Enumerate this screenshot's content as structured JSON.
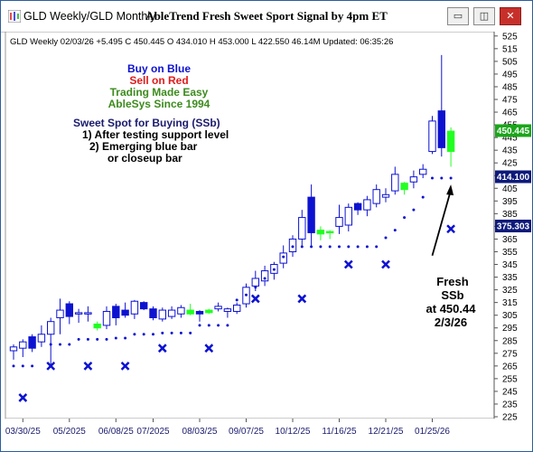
{
  "window": {
    "tab_title": "GLD Weekly/GLD Monthly",
    "title": "AbleTrend Fresh Sweet Sport Signal by 4pm ET",
    "controls": {
      "minimize": "▭",
      "restore": "◫",
      "close": "✕"
    }
  },
  "chart_header": "GLD  Weekly 02/03/26 +5.495 C 450.445 O 434.010 H 453.000 L 422.550 46.14M Updated: 06:35:26",
  "legend": {
    "buy": "Buy on Blue",
    "sell": "Sell on Red",
    "trading": "Trading Made Easy",
    "since": "AbleSys Since 1994",
    "sweet": "Sweet Spot for Buying (SSb)",
    "rule1": "1) After testing support level",
    "rule2": "2) Emerging blue bar",
    "rule3": "or closeup bar"
  },
  "annotation": [
    "Fresh",
    "SSb",
    "at 450.44",
    "2/3/26"
  ],
  "colors": {
    "blue": "#0d12d0",
    "red": "#e11b1b",
    "green": "#3d8b1e",
    "navy": "#1b1b6e",
    "bright_green": "#22ff22",
    "price_box_green": "#1aa61a",
    "price_box_navy": "#0d1a7a"
  },
  "chart_data": {
    "type": "candlestick",
    "symbol": "GLD",
    "interval": "Weekly",
    "ylim": [
      225,
      527
    ],
    "y_ticks": [
      525,
      515,
      505,
      495,
      485,
      475,
      465,
      455,
      445,
      435,
      425,
      415,
      405,
      395,
      385,
      375,
      365,
      355,
      345,
      335,
      325,
      315,
      305,
      295,
      285,
      275,
      265,
      255,
      245,
      235,
      225
    ],
    "x_ticks": [
      {
        "label": "03/30/25",
        "i": 1
      },
      {
        "label": "05/2025",
        "i": 6
      },
      {
        "label": "06/08/25",
        "i": 11
      },
      {
        "label": "07/2025",
        "i": 15
      },
      {
        "label": "08/03/25",
        "i": 20
      },
      {
        "label": "09/07/25",
        "i": 25
      },
      {
        "label": "10/12/25",
        "i": 30
      },
      {
        "label": "11/16/25",
        "i": 35
      },
      {
        "label": "12/21/25",
        "i": 40
      },
      {
        "label": "01/25/26",
        "i": 45
      }
    ],
    "price_labels": [
      {
        "value": "450.445",
        "color": "#1aa61a",
        "y": 450.445
      },
      {
        "value": "414.100",
        "color": "#0d1a7a",
        "y": 414.1
      },
      {
        "value": "375.303",
        "color": "#0d1a7a",
        "y": 375.303
      }
    ],
    "candles": [
      {
        "o": 277,
        "h": 282,
        "l": 270,
        "c": 280,
        "col": "white"
      },
      {
        "o": 279,
        "h": 286,
        "l": 272,
        "c": 284,
        "col": "white"
      },
      {
        "o": 279,
        "h": 290,
        "l": 276,
        "c": 288,
        "col": "blue"
      },
      {
        "o": 284,
        "h": 297,
        "l": 280,
        "c": 290,
        "col": "white"
      },
      {
        "o": 290,
        "h": 303,
        "l": 265,
        "c": 300,
        "col": "white"
      },
      {
        "o": 303,
        "h": 318,
        "l": 290,
        "c": 309,
        "col": "white"
      },
      {
        "o": 304,
        "h": 316,
        "l": 298,
        "c": 314,
        "col": "blue"
      },
      {
        "o": 307,
        "h": 310,
        "l": 299,
        "c": 306,
        "col": "white"
      },
      {
        "o": 307,
        "h": 312,
        "l": 300,
        "c": 306,
        "col": "white"
      },
      {
        "o": 298,
        "h": 300,
        "l": 293,
        "c": 295,
        "col": "green"
      },
      {
        "o": 297,
        "h": 312,
        "l": 294,
        "c": 308,
        "col": "white"
      },
      {
        "o": 303,
        "h": 314,
        "l": 297,
        "c": 312,
        "col": "blue"
      },
      {
        "o": 305,
        "h": 315,
        "l": 303,
        "c": 309,
        "col": "blue"
      },
      {
        "o": 306,
        "h": 317,
        "l": 302,
        "c": 316,
        "col": "white"
      },
      {
        "o": 315,
        "h": 316,
        "l": 309,
        "c": 310,
        "col": "blue"
      },
      {
        "o": 310,
        "h": 312,
        "l": 301,
        "c": 303,
        "col": "blue"
      },
      {
        "o": 302,
        "h": 311,
        "l": 300,
        "c": 309,
        "col": "white"
      },
      {
        "o": 304,
        "h": 312,
        "l": 302,
        "c": 309,
        "col": "white"
      },
      {
        "o": 306,
        "h": 313,
        "l": 303,
        "c": 311,
        "col": "white"
      },
      {
        "o": 309,
        "h": 314,
        "l": 305,
        "c": 306,
        "col": "green"
      },
      {
        "o": 308,
        "h": 309,
        "l": 300,
        "c": 306,
        "col": "blue"
      },
      {
        "o": 309,
        "h": 310,
        "l": 306,
        "c": 307,
        "col": "green"
      },
      {
        "o": 310,
        "h": 315,
        "l": 308,
        "c": 312,
        "col": "white"
      },
      {
        "o": 308,
        "h": 311,
        "l": 303,
        "c": 310,
        "col": "white"
      },
      {
        "o": 308,
        "h": 315,
        "l": 306,
        "c": 313,
        "col": "white"
      },
      {
        "o": 314,
        "h": 330,
        "l": 311,
        "c": 327,
        "col": "white"
      },
      {
        "o": 328,
        "h": 340,
        "l": 324,
        "c": 334,
        "col": "white"
      },
      {
        "o": 332,
        "h": 344,
        "l": 328,
        "c": 340,
        "col": "white"
      },
      {
        "o": 338,
        "h": 347,
        "l": 333,
        "c": 345,
        "col": "white"
      },
      {
        "o": 346,
        "h": 360,
        "l": 342,
        "c": 354,
        "col": "white"
      },
      {
        "o": 355,
        "h": 368,
        "l": 351,
        "c": 365,
        "col": "white"
      },
      {
        "o": 365,
        "h": 388,
        "l": 360,
        "c": 382,
        "col": "white"
      },
      {
        "o": 370,
        "h": 408,
        "l": 360,
        "c": 398,
        "col": "blue"
      },
      {
        "o": 372,
        "h": 375,
        "l": 364,
        "c": 369,
        "col": "green"
      },
      {
        "o": 370,
        "h": 372,
        "l": 365,
        "c": 371,
        "col": "green"
      },
      {
        "o": 382,
        "h": 392,
        "l": 369,
        "c": 375,
        "col": "white"
      },
      {
        "o": 376,
        "h": 393,
        "l": 371,
        "c": 390,
        "col": "white"
      },
      {
        "o": 388,
        "h": 394,
        "l": 384,
        "c": 393,
        "col": "blue"
      },
      {
        "o": 388,
        "h": 399,
        "l": 383,
        "c": 396,
        "col": "white"
      },
      {
        "o": 393,
        "h": 408,
        "l": 390,
        "c": 404,
        "col": "white"
      },
      {
        "o": 398,
        "h": 405,
        "l": 394,
        "c": 400,
        "col": "white"
      },
      {
        "o": 403,
        "h": 422,
        "l": 400,
        "c": 416,
        "col": "white"
      },
      {
        "o": 409,
        "h": 410,
        "l": 400,
        "c": 404,
        "col": "green"
      },
      {
        "o": 410,
        "h": 419,
        "l": 405,
        "c": 414,
        "col": "white"
      },
      {
        "o": 416,
        "h": 424,
        "l": 413,
        "c": 420,
        "col": "white"
      },
      {
        "o": 434,
        "h": 462,
        "l": 432,
        "c": 458,
        "col": "white"
      },
      {
        "o": 437,
        "h": 510,
        "l": 430,
        "c": 466,
        "col": "blue"
      },
      {
        "o": 434,
        "h": 453,
        "l": 422,
        "c": 450,
        "col": "green"
      }
    ],
    "dots": [
      [
        0,
        265
      ],
      [
        1,
        265
      ],
      [
        2,
        265
      ],
      [
        4,
        282
      ],
      [
        5,
        282
      ],
      [
        6,
        282
      ],
      [
        7,
        286
      ],
      [
        8,
        286
      ],
      [
        9,
        286
      ],
      [
        10,
        286
      ],
      [
        11,
        287
      ],
      [
        12,
        287
      ],
      [
        13,
        290
      ],
      [
        14,
        290
      ],
      [
        15,
        290
      ],
      [
        16,
        291
      ],
      [
        17,
        291
      ],
      [
        18,
        291
      ],
      [
        19,
        291
      ],
      [
        20,
        297
      ],
      [
        21,
        297
      ],
      [
        22,
        297
      ],
      [
        23,
        297
      ],
      [
        24,
        317
      ],
      [
        25,
        321
      ],
      [
        26,
        327
      ],
      [
        27,
        334
      ],
      [
        28,
        341
      ],
      [
        29,
        351
      ],
      [
        30,
        359
      ],
      [
        31,
        359
      ],
      [
        32,
        359
      ],
      [
        33,
        359
      ],
      [
        34,
        359
      ],
      [
        35,
        359
      ],
      [
        36,
        359
      ],
      [
        37,
        359
      ],
      [
        38,
        359
      ],
      [
        39,
        359
      ],
      [
        40,
        366
      ],
      [
        41,
        372
      ],
      [
        42,
        382
      ],
      [
        43,
        388
      ],
      [
        44,
        398
      ],
      [
        45,
        413
      ],
      [
        46,
        413
      ],
      [
        47,
        413
      ]
    ],
    "crosses": [
      [
        1,
        240
      ],
      [
        4,
        265
      ],
      [
        8,
        265
      ],
      [
        12,
        265
      ],
      [
        16,
        279
      ],
      [
        21,
        279
      ],
      [
        26,
        318
      ],
      [
        31,
        318
      ],
      [
        36,
        345
      ],
      [
        40,
        345
      ],
      [
        47,
        373
      ]
    ],
    "arrow": {
      "from": [
        45,
        352
      ],
      "to": [
        47,
        408
      ]
    }
  }
}
